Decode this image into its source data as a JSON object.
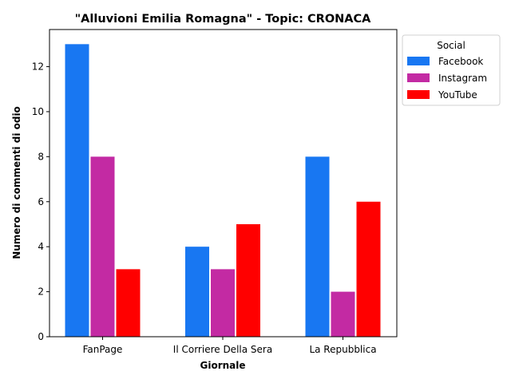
{
  "chart_data": {
    "type": "bar",
    "title": "\"Alluvioni Emilia Romagna\" - Topic: CRONACA",
    "xlabel": "Giornale",
    "ylabel": "Numero di commenti di odio",
    "categories": [
      "FanPage",
      "Il Corriere Della Sera",
      "La Repubblica"
    ],
    "series": [
      {
        "name": "Facebook",
        "values": [
          13,
          4,
          8
        ],
        "color": "#1877f2"
      },
      {
        "name": "Instagram",
        "values": [
          8,
          3,
          2
        ],
        "color": "#c32aa3"
      },
      {
        "name": "YouTube",
        "values": [
          3,
          5,
          6
        ],
        "color": "#ff0000"
      }
    ],
    "ylim": [
      0,
      13.65
    ],
    "yticks": [
      0,
      2,
      4,
      6,
      8,
      10,
      12
    ],
    "grid": false,
    "legend": {
      "title": "Social",
      "placement": "outside-top-right"
    }
  }
}
